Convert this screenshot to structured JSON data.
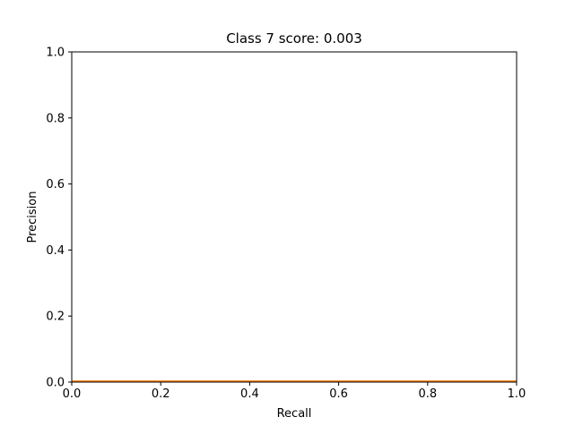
{
  "chart_data": {
    "type": "line",
    "title": "Class 7 score: 0.003",
    "xlabel": "Recall",
    "ylabel": "Precision",
    "xlim": [
      0.0,
      1.0
    ],
    "ylim": [
      0.0,
      1.0
    ],
    "xticks": [
      "0.0",
      "0.2",
      "0.4",
      "0.6",
      "0.8",
      "1.0"
    ],
    "yticks": [
      "0.0",
      "0.2",
      "0.4",
      "0.6",
      "0.8",
      "1.0"
    ],
    "grid": false,
    "legend": "none",
    "series": [
      {
        "name": "precision-recall-curve",
        "color": "#ff7f0e",
        "x": [
          0.0,
          1.0
        ],
        "y": [
          0.003,
          0.003
        ]
      }
    ]
  }
}
